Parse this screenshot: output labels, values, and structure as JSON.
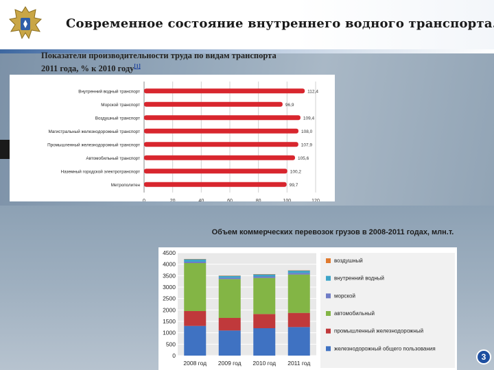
{
  "title": "Современное состояние внутреннего водного транспорта.",
  "subtitle": {
    "line1": "Показатели производительности труда по видам транспорта",
    "line2": "2011 года, % к 2010 году",
    "footnote": "[1]"
  },
  "page_number": "3",
  "colors": {
    "bar_red": "#d8262e",
    "rail_blue": "#3f72c2",
    "industrial_rail": "#c0393b",
    "auto_green": "#83b545",
    "sea_blue": "#6f7cc6",
    "inland_water": "#3da4c8",
    "air_orange": "#e07a2f"
  },
  "chart_data": [
    {
      "type": "bar",
      "orientation": "horizontal",
      "title": "",
      "categories": [
        "Внутренний водный транспорт",
        "Морской транспорт",
        "Воздушный транспорт",
        "Магистральный железнодорожный транспорт",
        "Промышленный железнодорожный транспорт",
        "Автомобильный транспорт",
        "Наземный городской электротранспорт",
        "Метрополитен"
      ],
      "values": [
        112.4,
        96.9,
        109.4,
        108.0,
        107.9,
        105.6,
        100.2,
        99.7
      ],
      "value_labels": [
        "112,4",
        "96,9",
        "109,4",
        "108,0",
        "107,9",
        "105,6",
        "100,2",
        "99,7"
      ],
      "xlim": [
        0,
        120
      ],
      "xticks": [
        "0",
        "20",
        "40",
        "60",
        "80",
        "100",
        "120"
      ],
      "grid": true
    },
    {
      "type": "bar",
      "stacked": true,
      "title": "Объем коммерческих перевозок грузов в 2008-2011 годах, млн.т.",
      "categories": [
        "2008 год",
        "2009 год",
        "2010 год",
        "2011 год"
      ],
      "ylim": [
        0,
        4500
      ],
      "yticks": [
        "0",
        "500",
        "1000",
        "1500",
        "2000",
        "2500",
        "3000",
        "3500",
        "4000",
        "4500"
      ],
      "series": [
        {
          "name": "железнодорожный общего пользования",
          "values": [
            1300,
            1100,
            1200,
            1250
          ]
        },
        {
          "name": "промышленный железнодорожный",
          "values": [
            650,
            550,
            620,
            620
          ]
        },
        {
          "name": "автомобильный",
          "values": [
            2100,
            1700,
            1580,
            1680
          ]
        },
        {
          "name": "морской",
          "values": [
            60,
            60,
            65,
            70
          ]
        },
        {
          "name": "внутренний водный",
          "values": [
            120,
            90,
            100,
            110
          ]
        },
        {
          "name": "воздушный",
          "values": [
            1,
            1,
            1,
            1
          ]
        }
      ],
      "legend_position": "right"
    }
  ]
}
